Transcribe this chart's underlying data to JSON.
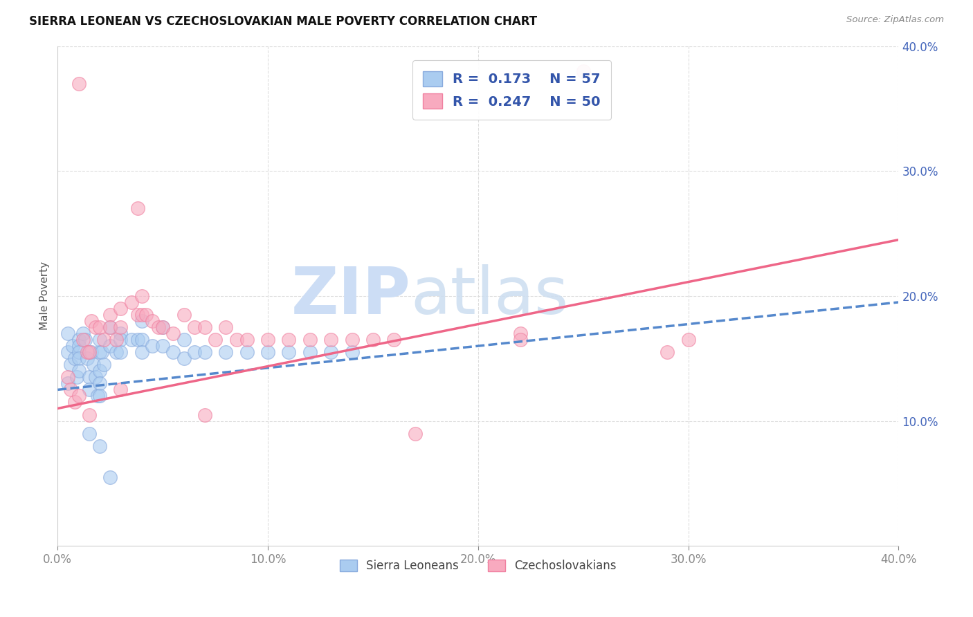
{
  "title": "SIERRA LEONEAN VS CZECHOSLOVAKIAN MALE POVERTY CORRELATION CHART",
  "source": "Source: ZipAtlas.com",
  "ylabel": "Male Poverty",
  "xlim": [
    0.0,
    0.4
  ],
  "ylim": [
    0.0,
    0.4
  ],
  "ytick_values": [
    0.0,
    0.1,
    0.2,
    0.3,
    0.4
  ],
  "xtick_values": [
    0.0,
    0.1,
    0.2,
    0.3,
    0.4
  ],
  "sierra_R": "0.173",
  "sierra_N": "57",
  "czech_R": "0.247",
  "czech_N": "50",
  "sierra_color": "#aaccf0",
  "czech_color": "#f8aabf",
  "sierra_edge_color": "#88aadd",
  "czech_edge_color": "#f080a0",
  "sierra_trend_color": "#5588cc",
  "czech_trend_color": "#ee6688",
  "watermark_zip": "ZIP",
  "watermark_atlas": "atlas",
  "watermark_color": "#ccddf5",
  "background_color": "#ffffff",
  "grid_color": "#dddddd",
  "legend_text_color": "#3355aa",
  "title_fontsize": 12,
  "axis_label_color": "#4466bb",
  "sierra_scatter_x": [
    0.005,
    0.005,
    0.005,
    0.006,
    0.007,
    0.008,
    0.009,
    0.01,
    0.01,
    0.01,
    0.01,
    0.01,
    0.012,
    0.013,
    0.014,
    0.015,
    0.015,
    0.016,
    0.017,
    0.018,
    0.019,
    0.02,
    0.02,
    0.02,
    0.02,
    0.02,
    0.021,
    0.022,
    0.025,
    0.025,
    0.028,
    0.03,
    0.03,
    0.03,
    0.035,
    0.038,
    0.04,
    0.04,
    0.04,
    0.045,
    0.05,
    0.05,
    0.055,
    0.06,
    0.06,
    0.065,
    0.07,
    0.08,
    0.09,
    0.1,
    0.11,
    0.12,
    0.13,
    0.14,
    0.015,
    0.02,
    0.025
  ],
  "sierra_scatter_y": [
    0.17,
    0.155,
    0.13,
    0.145,
    0.16,
    0.15,
    0.135,
    0.165,
    0.16,
    0.155,
    0.15,
    0.14,
    0.17,
    0.165,
    0.15,
    0.135,
    0.125,
    0.155,
    0.145,
    0.135,
    0.12,
    0.165,
    0.155,
    0.14,
    0.13,
    0.12,
    0.155,
    0.145,
    0.175,
    0.16,
    0.155,
    0.17,
    0.165,
    0.155,
    0.165,
    0.165,
    0.18,
    0.165,
    0.155,
    0.16,
    0.175,
    0.16,
    0.155,
    0.165,
    0.15,
    0.155,
    0.155,
    0.155,
    0.155,
    0.155,
    0.155,
    0.155,
    0.155,
    0.155,
    0.09,
    0.08,
    0.055
  ],
  "czech_scatter_x": [
    0.005,
    0.006,
    0.008,
    0.01,
    0.012,
    0.014,
    0.015,
    0.016,
    0.018,
    0.02,
    0.022,
    0.025,
    0.025,
    0.028,
    0.03,
    0.03,
    0.035,
    0.038,
    0.04,
    0.04,
    0.042,
    0.045,
    0.048,
    0.05,
    0.055,
    0.06,
    0.065,
    0.07,
    0.075,
    0.08,
    0.085,
    0.09,
    0.1,
    0.11,
    0.12,
    0.13,
    0.14,
    0.15,
    0.16,
    0.22,
    0.25,
    0.29,
    0.22,
    0.17,
    0.07,
    0.038,
    0.03,
    0.015,
    0.01,
    0.3
  ],
  "czech_scatter_y": [
    0.135,
    0.125,
    0.115,
    0.12,
    0.165,
    0.155,
    0.155,
    0.18,
    0.175,
    0.175,
    0.165,
    0.185,
    0.175,
    0.165,
    0.19,
    0.175,
    0.195,
    0.185,
    0.2,
    0.185,
    0.185,
    0.18,
    0.175,
    0.175,
    0.17,
    0.185,
    0.175,
    0.175,
    0.165,
    0.175,
    0.165,
    0.165,
    0.165,
    0.165,
    0.165,
    0.165,
    0.165,
    0.165,
    0.165,
    0.17,
    0.38,
    0.155,
    0.165,
    0.09,
    0.105,
    0.27,
    0.125,
    0.105,
    0.37,
    0.165
  ],
  "sierra_trend_x": [
    0.0,
    0.4
  ],
  "sierra_trend_y": [
    0.125,
    0.195
  ],
  "czech_trend_x": [
    0.0,
    0.4
  ],
  "czech_trend_y": [
    0.11,
    0.245
  ]
}
